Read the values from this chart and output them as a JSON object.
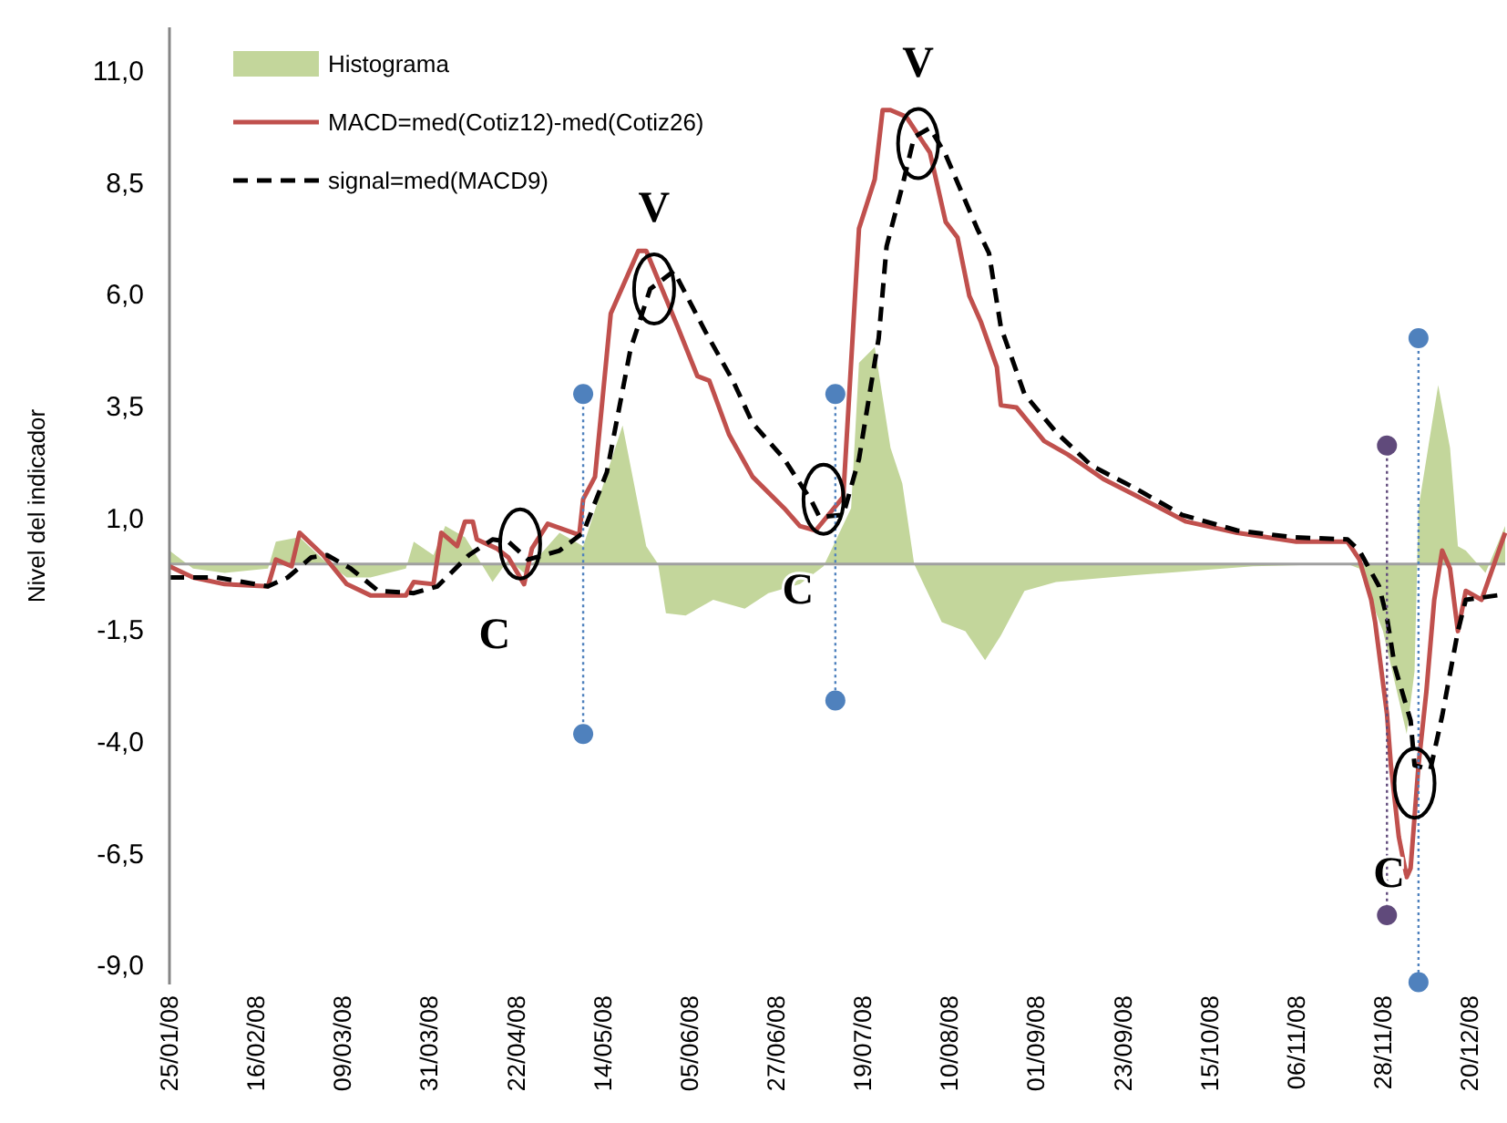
{
  "chart_data": {
    "type": "line",
    "ylabel": "Nivel del indicador",
    "xlim": [
      "2008-01-25",
      "2008-12-29"
    ],
    "ylim": [
      -9.4,
      12
    ],
    "xticks": [
      {
        "value": "2008-01-25",
        "label": "25/01/08"
      },
      {
        "value": "2008-02-16",
        "label": "16/02/08"
      },
      {
        "value": "2008-03-09",
        "label": "09/03/08"
      },
      {
        "value": "2008-03-31",
        "label": "31/03/08"
      },
      {
        "value": "2008-04-22",
        "label": "22/04/08"
      },
      {
        "value": "2008-05-14",
        "label": "14/05/08"
      },
      {
        "value": "2008-06-05",
        "label": "05/06/08"
      },
      {
        "value": "2008-06-27",
        "label": "27/06/08"
      },
      {
        "value": "2008-07-19",
        "label": "19/07/08"
      },
      {
        "value": "2008-08-10",
        "label": "10/08/08"
      },
      {
        "value": "2008-09-01",
        "label": "01/09/08"
      },
      {
        "value": "2008-09-23",
        "label": "23/09/08"
      },
      {
        "value": "2008-10-15",
        "label": "15/10/08"
      },
      {
        "value": "2008-11-06",
        "label": "06/11/08"
      },
      {
        "value": "2008-11-28",
        "label": "28/11/08"
      },
      {
        "value": "2008-12-20",
        "label": "20/12/08"
      }
    ],
    "yticks": [
      {
        "value": 11,
        "label": "11,0"
      },
      {
        "value": 8.5,
        "label": "8,5"
      },
      {
        "value": 6,
        "label": "6,0"
      },
      {
        "value": 3.5,
        "label": "3,5"
      },
      {
        "value": 1,
        "label": "1,0"
      },
      {
        "value": -1.5,
        "label": "-1,5"
      },
      {
        "value": -4,
        "label": "-4,0"
      },
      {
        "value": -6.5,
        "label": "-6,5"
      },
      {
        "value": -9,
        "label": "-9,0"
      }
    ],
    "legend": "top left",
    "ref_lines": [
      {
        "axis": "y",
        "value": 0,
        "color": "#a0a0a0",
        "line_style": "solid"
      }
    ],
    "series": [
      {
        "name": "Histograma",
        "type": "area",
        "color": "#c3d69b",
        "x": [
          "2008-01-25",
          "2008-01-31",
          "2008-02-08",
          "2008-02-19",
          "2008-02-21",
          "2008-02-27",
          "2008-03-04",
          "2008-03-10",
          "2008-03-16",
          "2008-03-25",
          "2008-03-27",
          "2008-04-01",
          "2008-04-04",
          "2008-04-09",
          "2008-04-16",
          "2008-04-20",
          "2008-04-24",
          "2008-05-03",
          "2008-05-09",
          "2008-05-19",
          "2008-05-25",
          "2008-05-28",
          "2008-05-30",
          "2008-06-04",
          "2008-06-11",
          "2008-06-19",
          "2008-06-25",
          "2008-07-03",
          "2008-07-09",
          "2008-07-16",
          "2008-07-18",
          "2008-07-22",
          "2008-07-26",
          "2008-07-29",
          "2008-08-01",
          "2008-08-08",
          "2008-08-14",
          "2008-08-19",
          "2008-08-23",
          "2008-08-29",
          "2008-09-06",
          "2008-09-26",
          "2008-10-26",
          "2008-11-19",
          "2008-11-22",
          "2008-11-28",
          "2008-12-04",
          "2008-12-06",
          "2008-12-07",
          "2008-12-12",
          "2008-12-15",
          "2008-12-17",
          "2008-12-19",
          "2008-12-24",
          "2008-12-29"
        ],
        "values": [
          0.3,
          -0.1,
          -0.2,
          -0.1,
          0.5,
          0.6,
          0.1,
          -0.3,
          -0.3,
          -0.1,
          0.5,
          0.2,
          0.85,
          0.6,
          -0.4,
          0.1,
          -0.2,
          0.7,
          0.4,
          3.1,
          0.4,
          0,
          -1.1,
          -1.15,
          -0.8,
          -1.0,
          -0.65,
          -0.45,
          -0.05,
          1.25,
          4.5,
          4.85,
          2.6,
          1.8,
          0,
          -1.3,
          -1.5,
          -2.15,
          -1.6,
          -0.6,
          -0.4,
          -0.25,
          -0.05,
          0,
          -0.1,
          -1.5,
          -3.8,
          -2.4,
          1.25,
          4.0,
          2.6,
          0.4,
          0.3,
          -0.2,
          0.85
        ]
      },
      {
        "name": "MACD=med(Cotiz12)-med(Cotiz26)",
        "color": "#c0504d",
        "line_style": "solid",
        "x": [
          "2008-01-25",
          "2008-01-31",
          "2008-02-08",
          "2008-02-19",
          "2008-02-21",
          "2008-02-25",
          "2008-02-27",
          "2008-03-04",
          "2008-03-10",
          "2008-03-16",
          "2008-03-25",
          "2008-03-27",
          "2008-04-01",
          "2008-04-03",
          "2008-04-07",
          "2008-04-09",
          "2008-04-11",
          "2008-04-12",
          "2008-04-17",
          "2008-04-20",
          "2008-04-24",
          "2008-04-26",
          "2008-04-30",
          "2008-05-08",
          "2008-05-09",
          "2008-05-12",
          "2008-05-16",
          "2008-05-23",
          "2008-05-25",
          "2008-06-02",
          "2008-06-07",
          "2008-06-10",
          "2008-06-15",
          "2008-06-21",
          "2008-06-29",
          "2008-07-03",
          "2008-07-07",
          "2008-07-14",
          "2008-07-18",
          "2008-07-22",
          "2008-07-24",
          "2008-07-26",
          "2008-07-30",
          "2008-08-05",
          "2008-08-09",
          "2008-08-12",
          "2008-08-15",
          "2008-08-18",
          "2008-08-22",
          "2008-08-23",
          "2008-08-27",
          "2008-09-03",
          "2008-09-09",
          "2008-09-18",
          "2008-09-27",
          "2008-10-09",
          "2008-10-22",
          "2008-11-06",
          "2008-11-19",
          "2008-11-22",
          "2008-11-25",
          "2008-11-26",
          "2008-11-29",
          "2008-11-30",
          "2008-12-02",
          "2008-12-04",
          "2008-12-05",
          "2008-12-07",
          "2008-12-09",
          "2008-12-11",
          "2008-12-13",
          "2008-12-15",
          "2008-12-17",
          "2008-12-19",
          "2008-12-23",
          "2008-12-29"
        ],
        "values": [
          -0.05,
          -0.3,
          -0.45,
          -0.5,
          0.1,
          -0.05,
          0.7,
          0.2,
          -0.45,
          -0.7,
          -0.7,
          -0.4,
          -0.45,
          0.7,
          0.4,
          0.95,
          0.95,
          0.55,
          0.35,
          0.15,
          -0.45,
          0.35,
          0.9,
          0.65,
          1.45,
          1.95,
          5.6,
          7.0,
          7.0,
          5.3,
          4.2,
          4.1,
          2.9,
          1.95,
          1.25,
          0.85,
          0.75,
          1.5,
          7.5,
          8.6,
          10.15,
          10.15,
          10.0,
          9.2,
          7.65,
          7.3,
          6.0,
          5.4,
          4.4,
          3.55,
          3.5,
          2.75,
          2.45,
          1.9,
          1.5,
          0.95,
          0.7,
          0.5,
          0.5,
          0.1,
          -0.8,
          -1.3,
          -3.35,
          -4.5,
          -6.1,
          -7.0,
          -6.8,
          -4.5,
          -2.85,
          -0.8,
          0.3,
          -0.1,
          -1.5,
          -0.6,
          -0.8,
          0.7
        ]
      },
      {
        "name": "signal=med(MACD9)",
        "color": "#000000",
        "line_style": "dashed",
        "x": [
          "2008-01-25",
          "2008-02-06",
          "2008-02-19",
          "2008-02-24",
          "2008-03-01",
          "2008-03-05",
          "2008-03-11",
          "2008-03-18",
          "2008-03-27",
          "2008-04-02",
          "2008-04-10",
          "2008-04-16",
          "2008-04-20",
          "2008-04-25",
          "2008-05-03",
          "2008-05-09",
          "2008-05-15",
          "2008-05-21",
          "2008-05-26",
          "2008-06-01",
          "2008-06-09",
          "2008-06-16",
          "2008-06-21",
          "2008-06-29",
          "2008-07-06",
          "2008-07-08",
          "2008-07-14",
          "2008-07-18",
          "2008-07-23",
          "2008-07-25",
          "2008-07-29",
          "2008-08-01",
          "2008-08-05",
          "2008-08-09",
          "2008-08-17",
          "2008-08-20",
          "2008-08-23",
          "2008-08-29",
          "2008-09-06",
          "2008-09-15",
          "2008-09-26",
          "2008-10-08",
          "2008-10-22",
          "2008-11-05",
          "2008-11-19",
          "2008-11-22",
          "2008-11-27",
          "2008-11-29",
          "2008-12-01",
          "2008-12-05",
          "2008-12-06",
          "2008-12-10",
          "2008-12-13",
          "2008-12-17",
          "2008-12-19",
          "2008-12-27"
        ],
        "values": [
          -0.3,
          -0.3,
          -0.5,
          -0.3,
          0.15,
          0.2,
          -0.1,
          -0.6,
          -0.65,
          -0.5,
          0.2,
          0.55,
          0.5,
          0.1,
          0.3,
          0.7,
          2.05,
          4.8,
          6.15,
          6.55,
          5.2,
          4.1,
          3.15,
          2.35,
          1.4,
          1.05,
          1.1,
          2.35,
          5.05,
          7.1,
          8.45,
          9.55,
          9.75,
          9.15,
          7.5,
          6.95,
          5.3,
          3.8,
          2.95,
          2.2,
          1.7,
          1.1,
          0.75,
          0.6,
          0.55,
          0.3,
          -0.5,
          -1.2,
          -2.3,
          -3.5,
          -4.5,
          -4.6,
          -3.4,
          -1.5,
          -0.8,
          -0.7
        ]
      },
      {
        "type": "line",
        "color": "#4f81bd",
        "line_style": "dotted",
        "marker": "circle",
        "x": [
          "2008-05-09",
          "2008-05-09"
        ],
        "values": [
          3.8,
          -3.8
        ]
      },
      {
        "type": "line",
        "color": "#4f81bd",
        "line_style": "dotted",
        "marker": "circle",
        "x": [
          "2008-07-12",
          "2008-07-12"
        ],
        "values": [
          3.8,
          -3.05
        ]
      },
      {
        "type": "line",
        "color": "#604a7b",
        "line_style": "dotted",
        "marker": "circle",
        "x": [
          "2008-11-29",
          "2008-11-29"
        ],
        "values": [
          2.65,
          -7.85
        ]
      },
      {
        "type": "line",
        "color": "#4f81bd",
        "line_style": "dotted",
        "marker": "circle",
        "x": [
          "2008-12-07",
          "2008-12-07"
        ],
        "values": [
          5.05,
          -9.35
        ]
      },
      {
        "type": "scatter",
        "color": "#000000",
        "marker": "circle",
        "x": [
          "2008-04-23",
          "2008-05-27",
          "2008-07-09",
          "2008-08-02",
          "2008-12-06"
        ],
        "values": [
          0.45,
          6.15,
          1.45,
          9.4,
          -4.9
        ]
      }
    ],
    "annotations": [
      {
        "text": "V",
        "x": "2008-05-27",
        "y": 6.15
      },
      {
        "text": "V",
        "x": "2008-08-02",
        "y": 9.4
      },
      {
        "text": "C",
        "x": "2008-04-23",
        "y": 0.45
      },
      {
        "text": "C",
        "x": "2008-07-09",
        "y": 1.45
      },
      {
        "text": "C",
        "x": "2008-12-06",
        "y": -4.9
      }
    ]
  }
}
